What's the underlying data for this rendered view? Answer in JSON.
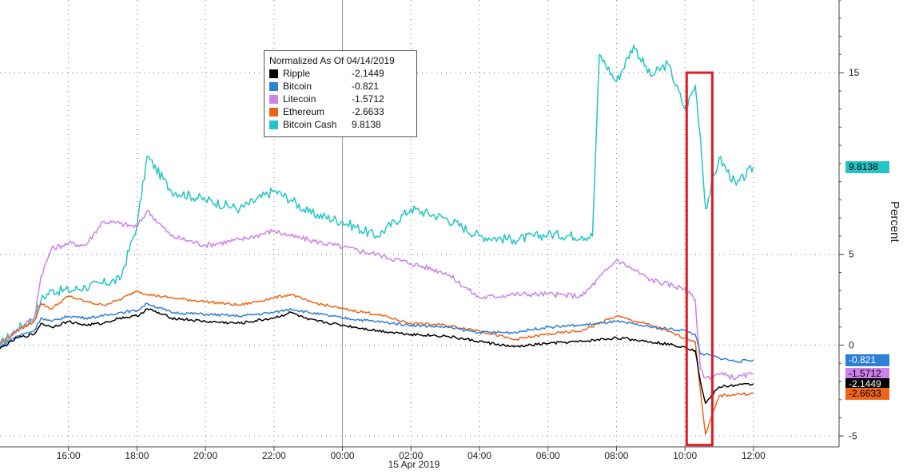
{
  "colors": {
    "ripple": "#000000",
    "bitcoin": "#2e7fd6",
    "litecoin": "#cc80e8",
    "ethereum": "#ef6418",
    "bitcoin_cash": "#22c5c5",
    "highlight_box": "#e31b23"
  },
  "legend": {
    "title": "Normalized As Of 04/14/2019",
    "items": [
      {
        "name": "Ripple",
        "value": "-2.1449",
        "color": "#000000"
      },
      {
        "name": "Bitcoin",
        "value": "-0.821",
        "color": "#2e7fd6"
      },
      {
        "name": "Litecoin",
        "value": "-1.5712",
        "color": "#cc80e8"
      },
      {
        "name": "Ethereum",
        "value": "-2.6633",
        "color": "#ef6418"
      },
      {
        "name": "Bitcoin Cash",
        "value": "9.8138",
        "color": "#22c5c5"
      }
    ]
  },
  "chart_data": {
    "type": "line",
    "xlabel": "15 Apr 2019",
    "ylabel": "Percent",
    "x_ticks": [
      "16:00",
      "18:00",
      "20:00",
      "22:00",
      "00:00",
      "02:00",
      "04:00",
      "06:00",
      "08:00",
      "10:00",
      "12:00"
    ],
    "x_tick_hours": [
      16,
      18,
      20,
      22,
      24,
      26,
      28,
      30,
      32,
      34,
      36
    ],
    "xlim": [
      14,
      38.5
    ],
    "y_ticks": [
      -5,
      0,
      5,
      15
    ],
    "ylim": [
      -5.6,
      19
    ],
    "grid": "dotted",
    "highlight_box": {
      "x_hours": [
        34.05,
        34.8
      ],
      "y": [
        -5.5,
        15
      ]
    },
    "badges": [
      {
        "series": "Bitcoin Cash",
        "text": "9.8138",
        "y": 9.8138
      },
      {
        "series": "Bitcoin",
        "text": "-0.821",
        "y": -0.821
      },
      {
        "series": "Litecoin",
        "text": "-1.5712",
        "y": -1.5712
      },
      {
        "series": "Ripple",
        "text": "-2.1449",
        "y": -2.1449
      },
      {
        "series": "Ethereum",
        "text": "-2.6633",
        "y": -2.6633
      }
    ],
    "series": [
      {
        "name": "Ripple",
        "x": [
          14,
          14.5,
          15,
          15.2,
          15.5,
          16,
          16.5,
          17,
          17.5,
          18,
          18.3,
          19,
          20,
          21,
          22,
          22.5,
          23,
          24,
          25,
          26,
          27,
          28,
          29,
          30,
          31,
          32,
          33,
          34,
          34.3,
          34.45,
          34.6,
          35,
          35.5,
          36
        ],
        "y": [
          -0.2,
          0.4,
          0.6,
          1.2,
          1.0,
          1.3,
          1.1,
          1.2,
          1.5,
          1.6,
          2.0,
          1.5,
          1.3,
          1.2,
          1.5,
          1.8,
          1.4,
          1.1,
          0.8,
          0.6,
          0.5,
          0.2,
          -0.1,
          0.1,
          0.2,
          0.4,
          0.2,
          -0.1,
          -0.3,
          -2.0,
          -3.2,
          -2.3,
          -2.2,
          -2.1449
        ]
      },
      {
        "name": "Bitcoin",
        "x": [
          14,
          14.5,
          15,
          15.2,
          15.5,
          16,
          16.5,
          17,
          17.5,
          18,
          18.3,
          19,
          20,
          21,
          22,
          22.5,
          23,
          24,
          25,
          26,
          27,
          28,
          29,
          30,
          31,
          32,
          33,
          34,
          34.3,
          34.45,
          34.6,
          35,
          35.5,
          36
        ],
        "y": [
          -0.1,
          0.5,
          0.8,
          1.5,
          1.3,
          1.6,
          1.5,
          1.6,
          1.8,
          1.9,
          2.3,
          1.8,
          1.7,
          1.6,
          1.8,
          2.0,
          1.8,
          1.5,
          1.3,
          1.1,
          1.0,
          0.7,
          0.7,
          1.0,
          1.1,
          1.3,
          1.0,
          0.8,
          0.6,
          -0.5,
          -0.5,
          -0.7,
          -0.9,
          -0.821
        ]
      },
      {
        "name": "Litecoin",
        "x": [
          14,
          14.5,
          15,
          15.2,
          15.5,
          16,
          16.5,
          17,
          17.5,
          18,
          18.3,
          19,
          20,
          21,
          22,
          22.5,
          23,
          24,
          25,
          26,
          27,
          28,
          29,
          30,
          31,
          32,
          33,
          34,
          34.3,
          34.45,
          34.6,
          35,
          35.5,
          36
        ],
        "y": [
          0.0,
          0.8,
          1.5,
          3.8,
          5.3,
          5.6,
          5.5,
          6.8,
          6.7,
          6.5,
          7.4,
          6.0,
          5.5,
          5.8,
          6.3,
          6.0,
          5.8,
          5.4,
          5.0,
          4.5,
          4.0,
          2.6,
          2.8,
          2.8,
          2.7,
          4.7,
          3.6,
          3.1,
          2.5,
          -1.3,
          -1.8,
          -1.6,
          -1.8,
          -1.5712
        ]
      },
      {
        "name": "Ethereum",
        "x": [
          14,
          14.5,
          15,
          15.2,
          15.5,
          16,
          16.5,
          17,
          17.5,
          18,
          18.3,
          19,
          20,
          21,
          22,
          22.5,
          23,
          24,
          25,
          26,
          27,
          28,
          29,
          30,
          31,
          32,
          33,
          34,
          34.3,
          34.45,
          34.6,
          35,
          35.5,
          36
        ],
        "y": [
          0.1,
          0.8,
          1.3,
          2.3,
          2.0,
          2.7,
          2.4,
          2.2,
          2.5,
          3.0,
          2.8,
          2.6,
          2.4,
          2.2,
          2.6,
          2.8,
          2.4,
          2.0,
          1.7,
          1.2,
          1.1,
          0.8,
          0.3,
          0.6,
          0.8,
          1.6,
          1.1,
          0.4,
          0.2,
          -2.5,
          -4.9,
          -2.8,
          -2.7,
          -2.6633
        ]
      },
      {
        "name": "Bitcoin Cash",
        "x": [
          14,
          14.5,
          15,
          15.2,
          15.5,
          16,
          16.5,
          17,
          17.5,
          18,
          18.3,
          19,
          20,
          21,
          22,
          22.5,
          23,
          24,
          25,
          26,
          27,
          28,
          29,
          30,
          31,
          31.3,
          31.5,
          32,
          32.5,
          33,
          33.5,
          34,
          34.3,
          34.45,
          34.6,
          35,
          35.5,
          36
        ],
        "y": [
          0.0,
          0.9,
          1.5,
          2.5,
          3.0,
          3.0,
          3.2,
          3.4,
          3.6,
          6.6,
          10.4,
          8.5,
          8.0,
          7.5,
          8.5,
          8.0,
          7.3,
          6.8,
          6.0,
          7.5,
          7.0,
          6.0,
          5.8,
          6.1,
          6.0,
          6.0,
          16.0,
          14.5,
          16.5,
          14.8,
          15.5,
          13.0,
          14.3,
          11.5,
          7.5,
          10.3,
          8.8,
          9.8138
        ]
      }
    ]
  }
}
